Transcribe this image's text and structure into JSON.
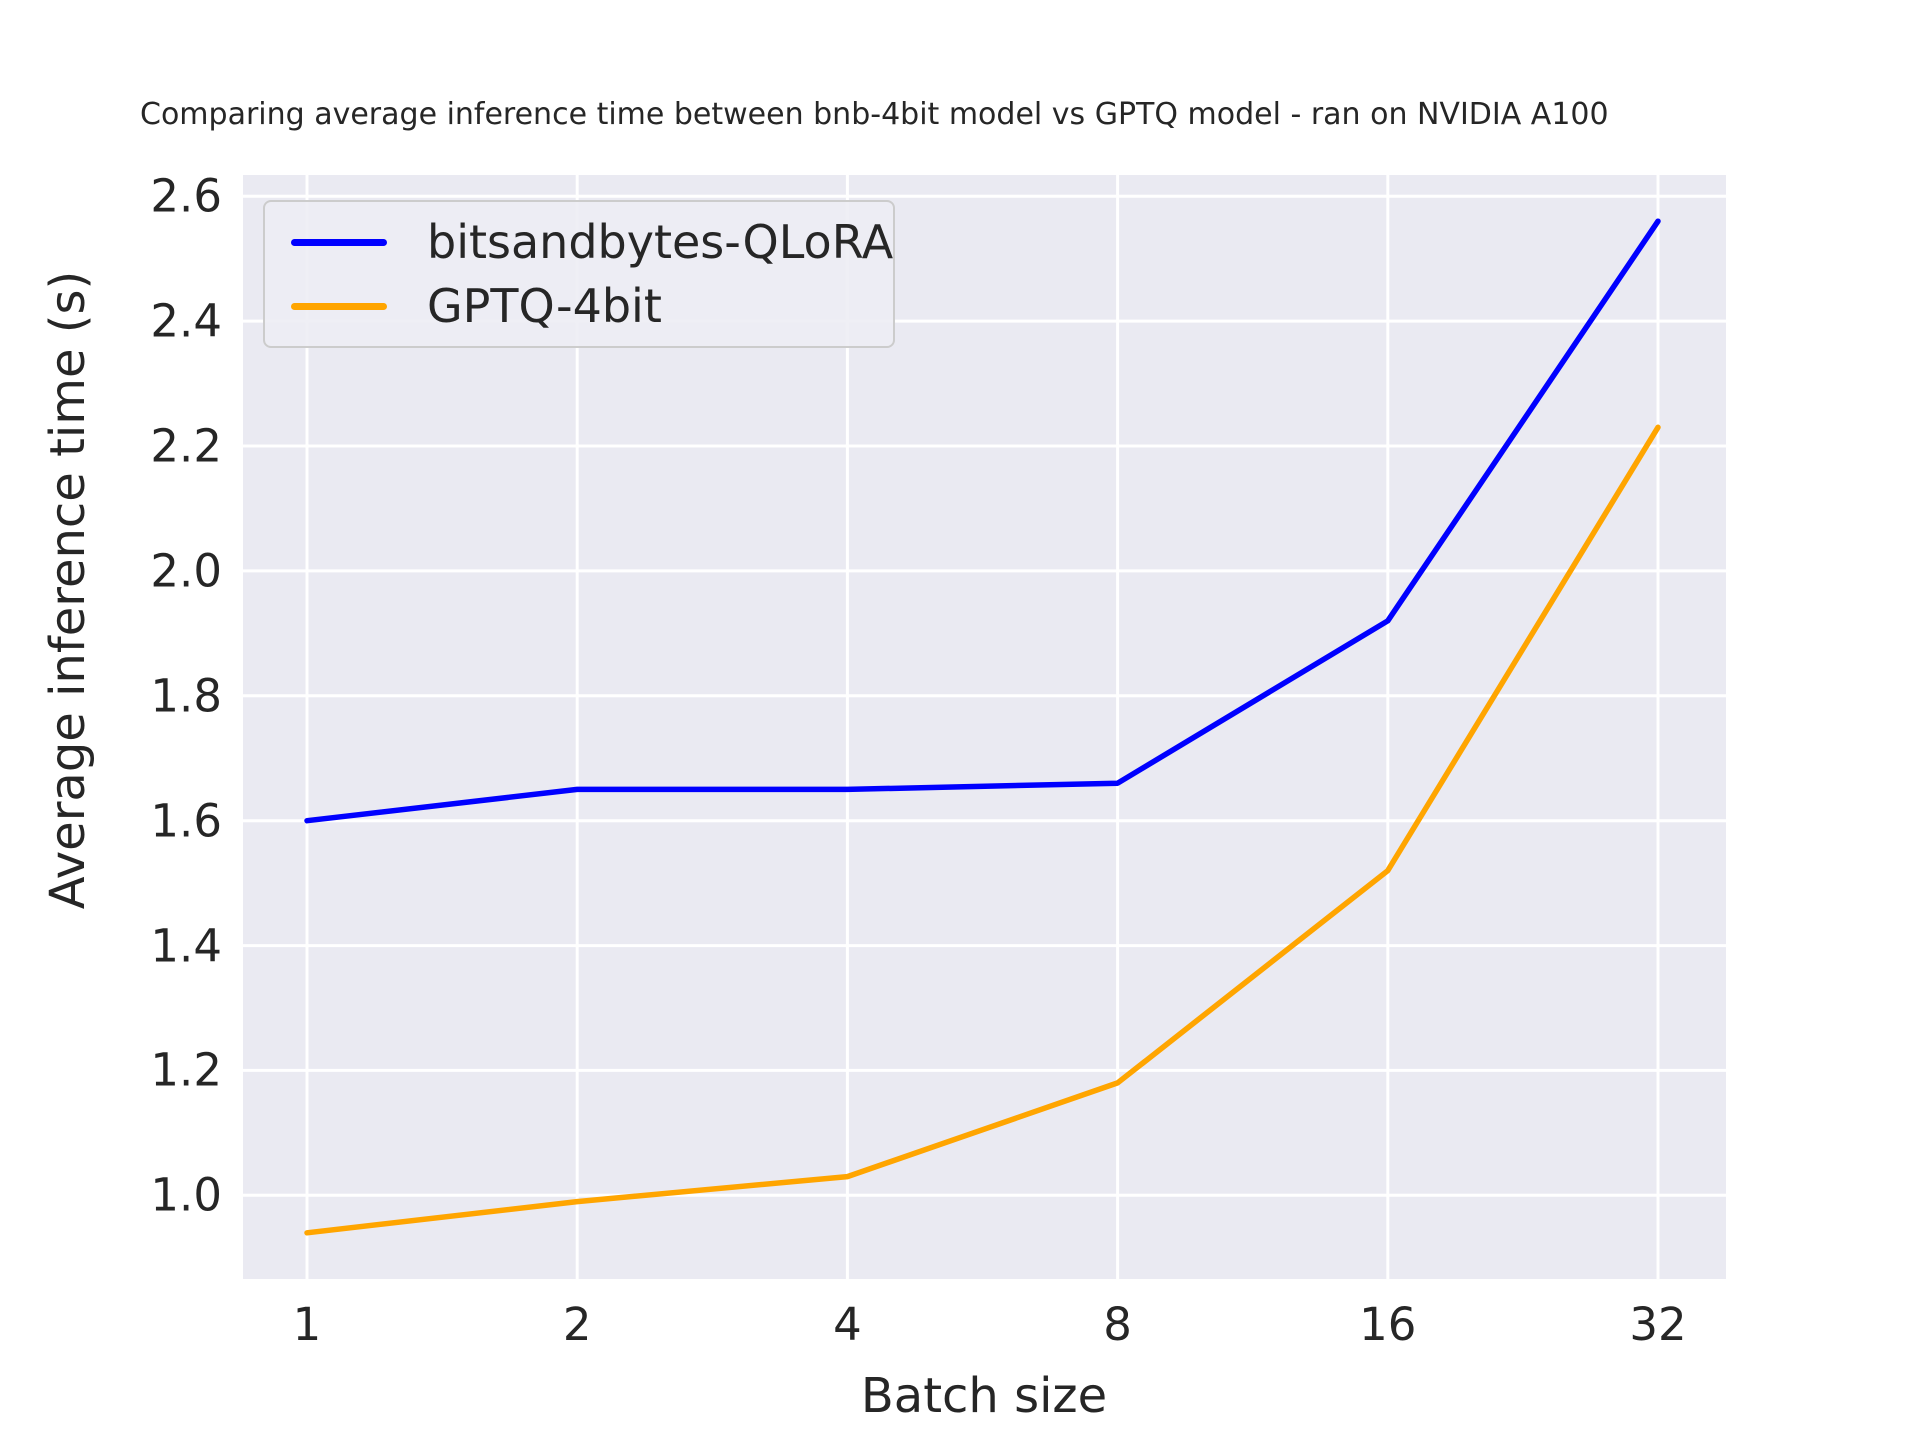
{
  "title": "Comparing average inference time between bnb-4bit model vs GPTQ model - ran on NVIDIA A100",
  "colors": {
    "page_background": "#ffffff",
    "axes_background": "#eaeaf2",
    "gridline": "#ffffff",
    "text": "#262626",
    "legend_border": "#cccccc"
  },
  "chart_data": {
    "type": "line",
    "title": "Comparing average inference time between bnb-4bit model vs GPTQ model - ran on NVIDIA A100",
    "xlabel": "Batch size",
    "ylabel": "Average inference time (s)",
    "categories": [
      1,
      2,
      4,
      8,
      16,
      32
    ],
    "x_tick_labels": [
      "1",
      "2",
      "4",
      "8",
      "16",
      "32"
    ],
    "y_ticks": [
      2.6,
      2.4,
      2.2,
      2.0,
      1.8,
      1.6,
      1.4,
      1.2,
      1.0
    ],
    "y_tick_labels": [
      "2.6",
      "2.4",
      "2.2",
      "2.0",
      "1.8",
      "1.6",
      "1.4",
      "1.2",
      "1.0"
    ],
    "ylim": [
      0.866,
      2.634
    ],
    "grid": true,
    "legend_position": "upper left",
    "series": [
      {
        "name": "bitsandbytes-QLoRA",
        "color": "#0000ff",
        "values": [
          1.6,
          1.65,
          1.65,
          1.66,
          1.92,
          2.56
        ]
      },
      {
        "name": "GPTQ-4bit",
        "color": "#ffa500",
        "values": [
          0.94,
          0.99,
          1.03,
          1.18,
          1.52,
          2.23
        ]
      }
    ]
  }
}
